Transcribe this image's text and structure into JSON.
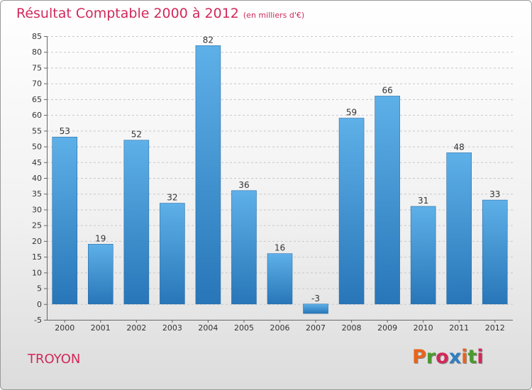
{
  "header": {
    "title": "Résultat Comptable 2000 à 2012",
    "subtitle": "(en milliers d'€)"
  },
  "footer": {
    "commune": "TROYON",
    "logo": "Proxiti",
    "logo_colors": [
      "#e8641b",
      "#4a9a2e",
      "#d0295a",
      "#2e7fc2",
      "#e8641b",
      "#4a9a2e",
      "#d0295a"
    ]
  },
  "colors": {
    "title": "#d0295a",
    "bar_light": "#5eb0e8",
    "bar_dark": "#2876b8"
  },
  "chart_data": {
    "type": "bar",
    "categories": [
      "2000",
      "2001",
      "2002",
      "2003",
      "2004",
      "2005",
      "2006",
      "2007",
      "2008",
      "2009",
      "2010",
      "2011",
      "2012"
    ],
    "values": [
      53,
      19,
      52,
      32,
      82,
      36,
      16,
      -3,
      59,
      66,
      31,
      48,
      33
    ],
    "data_labels": [
      "53",
      "19",
      "52",
      "32",
      "82",
      "36",
      "16",
      "-3",
      "59",
      "66",
      "31",
      "48",
      "33"
    ],
    "title": "Résultat Comptable 2000 à 2012",
    "xlabel": "",
    "ylabel": "",
    "ylim": [
      -5,
      85
    ],
    "yticks": [
      -5,
      0,
      5,
      10,
      15,
      20,
      25,
      30,
      35,
      40,
      45,
      50,
      55,
      60,
      65,
      70,
      75,
      80,
      85
    ],
    "grid": true
  }
}
